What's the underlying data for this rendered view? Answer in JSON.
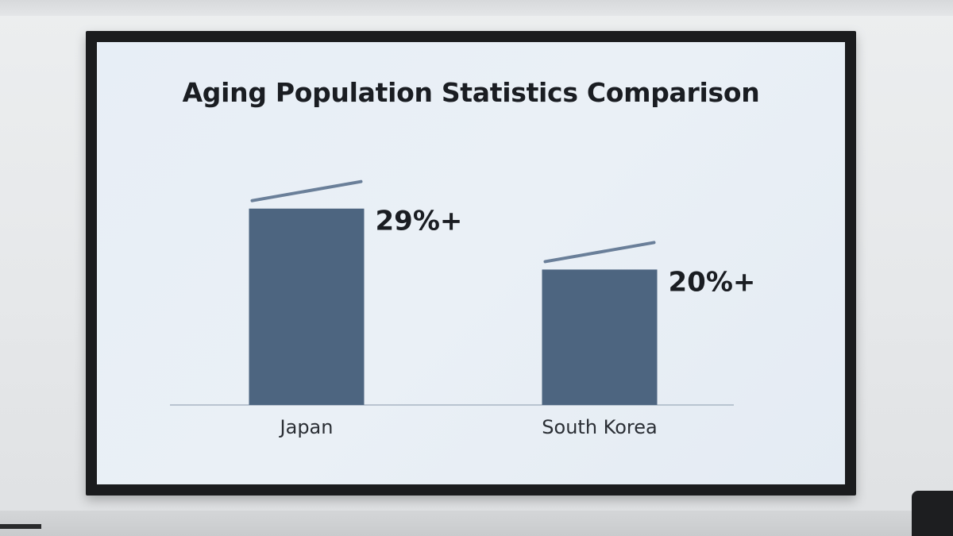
{
  "chart_data": {
    "type": "bar",
    "title": "Aging Population Statistics Comparison",
    "categories": [
      "Japan",
      "South Korea"
    ],
    "values": [
      29,
      20
    ],
    "value_labels": [
      "29%+",
      "20%+"
    ],
    "xlabel": "",
    "ylabel": "",
    "ylim": [
      0,
      36
    ],
    "grid": false,
    "legend": "none",
    "bar_color": "#4d6580",
    "trend_color": "#6a7f99",
    "label_color": "#1a1d22",
    "baseline_color": "#a9b6c4"
  }
}
